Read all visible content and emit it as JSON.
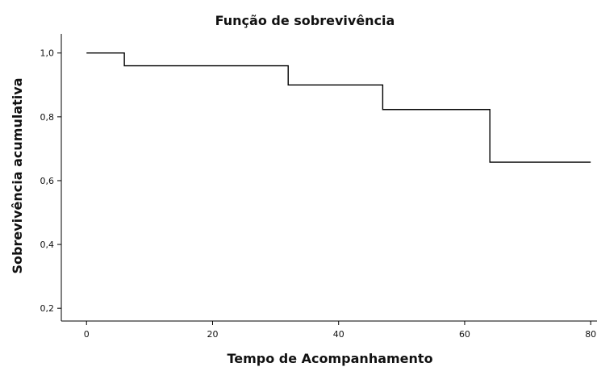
{
  "chart_data": {
    "type": "line",
    "step": true,
    "title": "Função de sobrevivência",
    "xlabel": "Tempo de Acompanhamento",
    "ylabel": "Sobrevivência acumulativa",
    "xlim": [
      -4,
      81
    ],
    "ylim": [
      0.16,
      1.06
    ],
    "x_ticks": [
      0,
      20,
      40,
      60,
      80
    ],
    "y_ticks": [
      0.2,
      0.4,
      0.6,
      0.8,
      1.0
    ],
    "x_tick_labels": [
      "0",
      "20",
      "40",
      "60",
      "80"
    ],
    "y_tick_labels": [
      "0,2",
      "0,4",
      "0,6",
      "0,8",
      "1,0"
    ],
    "grid": false,
    "legend": "none",
    "series": [
      {
        "x": [
          0,
          6,
          32,
          47,
          64,
          80
        ],
        "y": [
          1.0,
          0.96,
          0.9,
          0.823,
          0.658,
          0.658
        ]
      }
    ],
    "colors": {
      "line": "#000000",
      "axis": "#000000"
    }
  }
}
